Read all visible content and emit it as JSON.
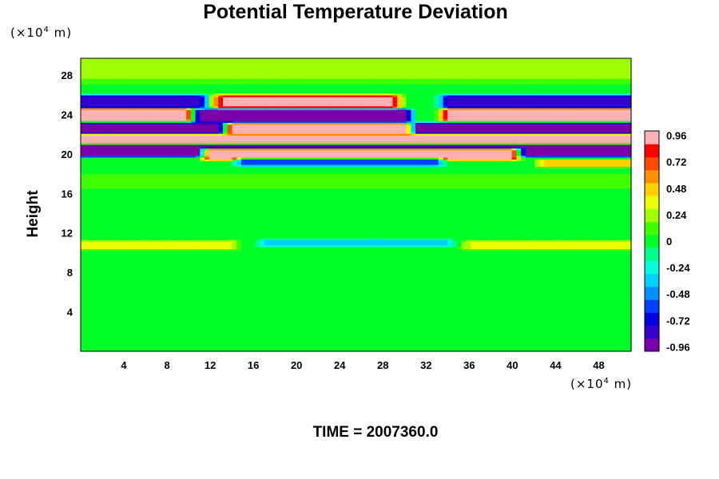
{
  "chart_data": {
    "type": "heatmap",
    "title": "Potential Temperature Deviation",
    "xlabel": "",
    "ylabel": "Height",
    "x_unit": "(×10",
    "x_unit_exp": "4",
    "x_unit_tail": " m)",
    "y_unit": "(×10",
    "y_unit_exp": "4",
    "y_unit_tail": " m)",
    "footer": "TIME = 2007360.0",
    "xlim": [
      0,
      51
    ],
    "ylim": [
      0,
      29.7
    ],
    "x_ticks": [
      4,
      8,
      12,
      16,
      20,
      24,
      28,
      32,
      36,
      40,
      44,
      48
    ],
    "x_tick_labels": [
      "4",
      "8",
      "12",
      "16",
      "20",
      "24",
      "28",
      "32",
      "36",
      "40",
      "44",
      "48"
    ],
    "y_ticks": [
      4,
      8,
      12,
      16,
      20,
      24,
      28
    ],
    "y_tick_labels": [
      "4",
      "8",
      "12",
      "16",
      "20",
      "24",
      "28"
    ],
    "colorbar": {
      "range": [
        -1.0,
        1.0
      ],
      "ticks": [
        0.96,
        0.72,
        0.48,
        0.24,
        0,
        -0.24,
        -0.48,
        -0.72,
        -0.96
      ],
      "tick_labels": [
        "0.96",
        "0.72",
        "0.48",
        "0.24",
        "0",
        "-0.24",
        "-0.48",
        "-0.72",
        "-0.96"
      ],
      "colors": [
        "#7b00a8",
        "#3300cc",
        "#0000e0",
        "#0040ff",
        "#0090ff",
        "#00d0ff",
        "#00ffd8",
        "#00ff8c",
        "#00ff28",
        "#40ff00",
        "#a0ff00",
        "#e8ff00",
        "#ffd000",
        "#ff9000",
        "#ff4800",
        "#ff0000",
        "#ffb0b0"
      ]
    },
    "field": {
      "background": 0.02,
      "bands": [
        {
          "y": 28.8,
          "half_height": 1.2,
          "value": 0.18,
          "x_from": 0,
          "x_to": 51
        },
        {
          "y": 25.3,
          "half_height": 0.55,
          "value": -0.85,
          "x_from": 0,
          "x_to": 11
        },
        {
          "y": 25.3,
          "half_height": 0.55,
          "value": 0.9,
          "x_from": 13,
          "x_to": 29
        },
        {
          "y": 25.3,
          "half_height": 0.55,
          "value": -0.85,
          "x_from": 34,
          "x_to": 51
        },
        {
          "y": 24.0,
          "half_height": 0.5,
          "value": 0.97,
          "x_from": 0,
          "x_to": 11
        },
        {
          "y": 23.9,
          "half_height": 0.55,
          "value": -0.97,
          "x_from": 11,
          "x_to": 30
        },
        {
          "y": 24.0,
          "half_height": 0.5,
          "value": 0.97,
          "x_from": 34,
          "x_to": 51
        },
        {
          "y": 22.5,
          "half_height": 0.55,
          "value": -0.97,
          "x_from": 0,
          "x_to": 51
        },
        {
          "y": 22.6,
          "half_height": 0.45,
          "value": 0.97,
          "x_from": 14,
          "x_to": 30
        },
        {
          "y": 21.4,
          "half_height": 0.5,
          "value": 0.97,
          "x_from": 0,
          "x_to": 51
        },
        {
          "y": 20.4,
          "half_height": 0.5,
          "value": -0.97,
          "x_from": 0,
          "x_to": 51
        },
        {
          "y": 20.0,
          "half_height": 0.45,
          "value": 0.97,
          "x_from": 12,
          "x_to": 40
        },
        {
          "y": 19.2,
          "half_height": 0.3,
          "value": -0.55,
          "x_from": 15,
          "x_to": 33
        },
        {
          "y": 19.1,
          "half_height": 0.3,
          "value": 0.5,
          "x_from": 43,
          "x_to": 51
        },
        {
          "y": 10.8,
          "half_height": 0.35,
          "value": 0.35,
          "x_from": 0,
          "x_to": 14
        },
        {
          "y": 11.0,
          "half_height": 0.3,
          "value": -0.3,
          "x_from": 17,
          "x_to": 34
        },
        {
          "y": 10.8,
          "half_height": 0.35,
          "value": 0.3,
          "x_from": 36,
          "x_to": 51
        },
        {
          "y": 17.2,
          "half_height": 0.5,
          "value": 0.15,
          "x_from": 0,
          "x_to": 51
        }
      ]
    }
  }
}
